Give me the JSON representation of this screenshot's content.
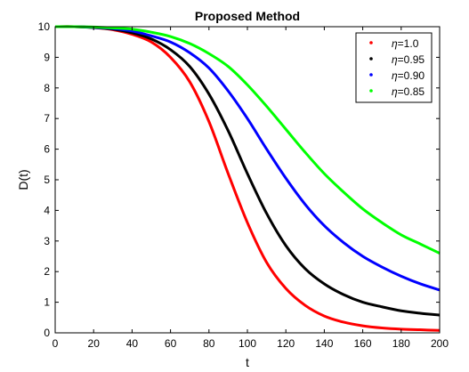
{
  "chart_data": {
    "type": "line",
    "title": "Proposed Method",
    "xlabel": "t",
    "ylabel": "D(t)",
    "xlim": [
      0,
      200
    ],
    "ylim": [
      0,
      10
    ],
    "xticks": [
      0,
      20,
      40,
      60,
      80,
      100,
      120,
      140,
      160,
      180,
      200
    ],
    "yticks": [
      0,
      1,
      2,
      3,
      4,
      5,
      6,
      7,
      8,
      9,
      10
    ],
    "grid": false,
    "legend_position": "top-right",
    "x": [
      0,
      10,
      20,
      30,
      40,
      50,
      60,
      70,
      80,
      90,
      100,
      110,
      120,
      130,
      140,
      150,
      160,
      170,
      180,
      190,
      200
    ],
    "series": [
      {
        "name": "η=1.0",
        "legend_symbol": "η",
        "legend_value": "=1.0",
        "color": "#ff0000",
        "values": [
          10.0,
          10.0,
          9.97,
          9.9,
          9.75,
          9.5,
          9.0,
          8.2,
          6.9,
          5.2,
          3.6,
          2.3,
          1.45,
          0.9,
          0.55,
          0.35,
          0.23,
          0.16,
          0.12,
          0.1,
          0.08
        ]
      },
      {
        "name": "η=0.95",
        "legend_symbol": "η",
        "legend_value": "=0.95",
        "color": "#000000",
        "values": [
          10.0,
          10.0,
          9.97,
          9.92,
          9.8,
          9.6,
          9.25,
          8.7,
          7.8,
          6.6,
          5.2,
          3.9,
          2.85,
          2.1,
          1.6,
          1.25,
          1.0,
          0.85,
          0.72,
          0.64,
          0.58
        ]
      },
      {
        "name": "η=0.90",
        "legend_symbol": "η",
        "legend_value": "=0.90",
        "color": "#0000ff",
        "values": [
          10.0,
          10.0,
          9.98,
          9.94,
          9.86,
          9.7,
          9.5,
          9.15,
          8.65,
          7.9,
          7.0,
          6.0,
          5.05,
          4.2,
          3.5,
          2.95,
          2.5,
          2.15,
          1.85,
          1.6,
          1.4
        ]
      },
      {
        "name": "η=0.85",
        "legend_symbol": "η",
        "legend_value": "=0.85",
        "color": "#00ff00",
        "values": [
          10.0,
          10.0,
          9.99,
          9.96,
          9.92,
          9.82,
          9.68,
          9.45,
          9.12,
          8.7,
          8.1,
          7.4,
          6.65,
          5.9,
          5.2,
          4.6,
          4.05,
          3.6,
          3.2,
          2.9,
          2.6
        ]
      }
    ]
  }
}
